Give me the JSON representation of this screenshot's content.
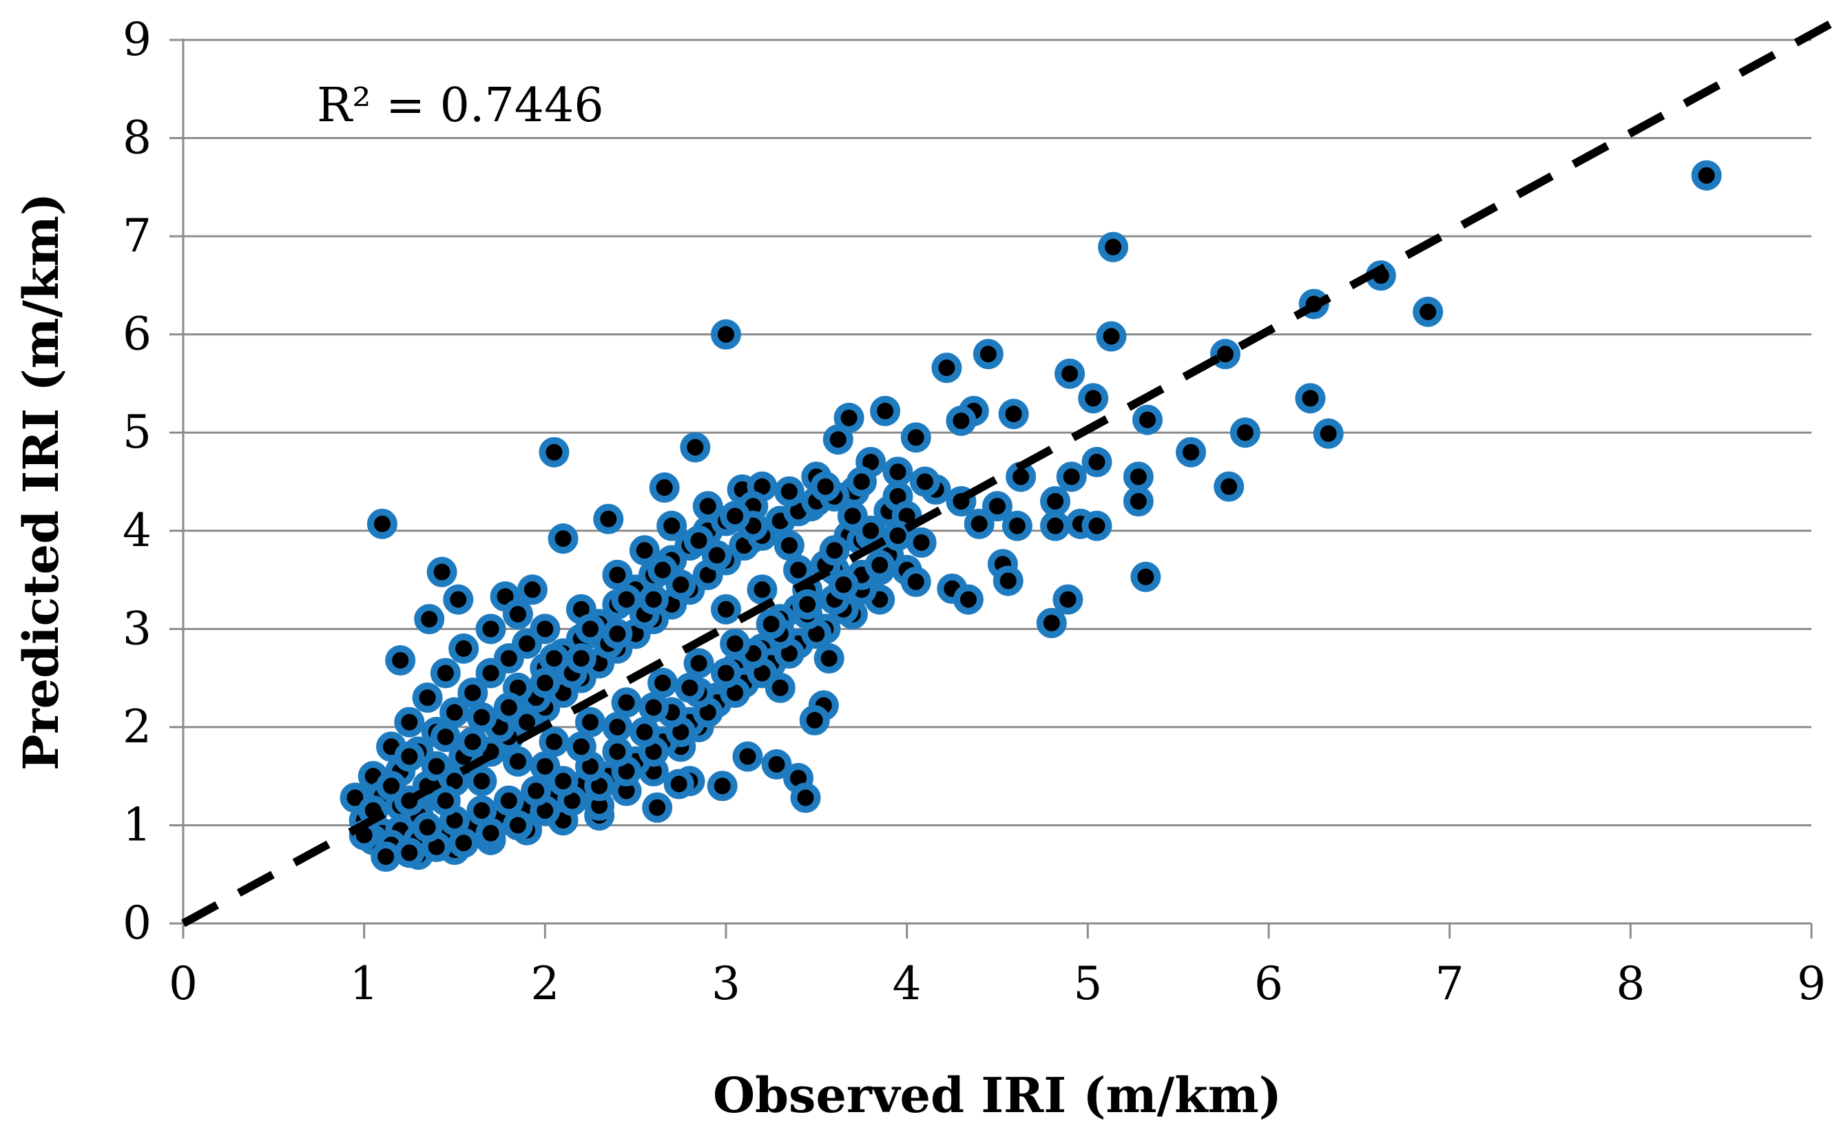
{
  "chart_data": {
    "type": "scatter",
    "title": "",
    "xlabel": "Observed IRI (m/km)",
    "ylabel": "Predicted IRI (m/km)",
    "xlim": [
      0,
      9
    ],
    "ylim": [
      0,
      9
    ],
    "x_ticks": [
      "0",
      "1",
      "2",
      "3",
      "4",
      "5",
      "6",
      "7",
      "8",
      "9"
    ],
    "y_ticks": [
      "0",
      "1",
      "2",
      "3",
      "4",
      "5",
      "6",
      "7",
      "8",
      "9"
    ],
    "grid": "horizontal",
    "legend": "none",
    "annotation": "R² = 0.7446",
    "reference_line": {
      "style": "dashed",
      "color": "#000000",
      "from": [
        0,
        0
      ],
      "to": [
        9,
        9
      ]
    },
    "marker": {
      "fill": "#000000",
      "edge": "#1F7BC0"
    },
    "series": [
      {
        "points": [
          [
            8.42,
            7.62
          ],
          [
            5.14,
            6.89
          ],
          [
            6.62,
            6.6
          ],
          [
            6.25,
            6.31
          ],
          [
            6.88,
            6.23
          ],
          [
            3.0,
            6.0
          ],
          [
            5.13,
            5.98
          ],
          [
            4.45,
            5.8
          ],
          [
            5.76,
            5.8
          ],
          [
            4.22,
            5.66
          ],
          [
            4.9,
            5.6
          ],
          [
            6.23,
            5.35
          ],
          [
            5.03,
            5.35
          ],
          [
            4.37,
            5.22
          ],
          [
            4.59,
            5.19
          ],
          [
            3.88,
            5.22
          ],
          [
            3.68,
            5.15
          ],
          [
            5.33,
            5.13
          ],
          [
            4.3,
            5.12
          ],
          [
            4.05,
            4.95
          ],
          [
            5.87,
            5.0
          ],
          [
            6.33,
            4.99
          ],
          [
            3.62,
            4.93
          ],
          [
            2.83,
            4.85
          ],
          [
            2.05,
            4.8
          ],
          [
            5.57,
            4.8
          ],
          [
            5.05,
            4.7
          ],
          [
            4.63,
            4.55
          ],
          [
            4.91,
            4.55
          ],
          [
            5.28,
            4.55
          ],
          [
            4.16,
            4.42
          ],
          [
            5.78,
            4.45
          ],
          [
            2.66,
            4.44
          ],
          [
            3.09,
            4.42
          ],
          [
            3.71,
            4.4
          ],
          [
            4.82,
            4.3
          ],
          [
            5.28,
            4.3
          ],
          [
            4.3,
            4.3
          ],
          [
            4.5,
            4.25
          ],
          [
            3.47,
            4.25
          ],
          [
            1.1,
            4.07
          ],
          [
            4.4,
            4.07
          ],
          [
            4.96,
            4.07
          ],
          [
            4.61,
            4.05
          ],
          [
            2.35,
            4.12
          ],
          [
            5.05,
            4.05
          ],
          [
            4.82,
            4.05
          ],
          [
            2.1,
            3.92
          ],
          [
            3.14,
            3.92
          ],
          [
            3.68,
            3.95
          ],
          [
            4.08,
            3.88
          ],
          [
            1.43,
            3.58
          ],
          [
            4.53,
            3.66
          ],
          [
            4.56,
            3.49
          ],
          [
            5.32,
            3.53
          ],
          [
            4.25,
            3.41
          ],
          [
            4.34,
            3.3
          ],
          [
            4.89,
            3.3
          ],
          [
            4.8,
            3.06
          ],
          [
            3.4,
            3.2
          ],
          [
            1.93,
            3.4
          ],
          [
            1.78,
            3.33
          ],
          [
            1.52,
            3.3
          ],
          [
            1.36,
            3.1
          ],
          [
            1.2,
            2.68
          ],
          [
            3.57,
            2.7
          ],
          [
            3.54,
            2.22
          ],
          [
            3.49,
            2.07
          ],
          [
            3.3,
            2.4
          ],
          [
            2.8,
            1.45
          ],
          [
            2.98,
            1.4
          ],
          [
            3.12,
            1.7
          ],
          [
            3.28,
            1.62
          ],
          [
            3.4,
            1.48
          ],
          [
            3.44,
            1.28
          ],
          [
            2.74,
            1.42
          ],
          [
            2.62,
            1.18
          ],
          [
            2.3,
            1.1
          ],
          [
            1.1,
            0.92
          ],
          [
            1.18,
            0.78
          ],
          [
            1.05,
            0.85
          ],
          [
            1.0,
            1.05
          ],
          [
            0.95,
            1.28
          ],
          [
            1.05,
            1.5
          ],
          [
            1.15,
            1.8
          ],
          [
            1.25,
            2.05
          ],
          [
            1.35,
            2.3
          ],
          [
            1.45,
            2.55
          ],
          [
            1.55,
            2.8
          ],
          [
            1.7,
            3.0
          ],
          [
            1.85,
            3.15
          ],
          [
            2.0,
            3.0
          ],
          [
            2.2,
            3.2
          ],
          [
            2.4,
            3.55
          ],
          [
            2.55,
            3.8
          ],
          [
            2.7,
            4.05
          ],
          [
            2.9,
            4.25
          ],
          [
            3.2,
            4.45
          ],
          [
            3.5,
            4.55
          ],
          [
            3.8,
            4.7
          ],
          [
            3.95,
            4.6
          ],
          [
            4.1,
            4.5
          ],
          [
            3.9,
            4.2
          ],
          [
            3.75,
            3.9
          ],
          [
            3.6,
            3.6
          ],
          [
            3.45,
            3.4
          ],
          [
            3.3,
            3.1
          ],
          [
            3.2,
            2.8
          ],
          [
            3.05,
            2.6
          ],
          [
            2.95,
            2.3
          ],
          [
            2.85,
            2.0
          ],
          [
            2.75,
            1.8
          ],
          [
            2.6,
            1.55
          ],
          [
            2.45,
            1.35
          ],
          [
            2.3,
            1.2
          ],
          [
            2.1,
            1.05
          ],
          [
            1.9,
            0.95
          ],
          [
            1.7,
            0.85
          ],
          [
            1.5,
            0.75
          ],
          [
            1.3,
            0.7
          ],
          [
            1.2,
            0.95
          ],
          [
            1.3,
            1.1
          ],
          [
            1.4,
            1.3
          ],
          [
            1.5,
            1.45
          ],
          [
            1.6,
            1.6
          ],
          [
            1.7,
            1.75
          ],
          [
            1.8,
            1.9
          ],
          [
            1.9,
            2.05
          ],
          [
            2.0,
            2.2
          ],
          [
            2.1,
            2.35
          ],
          [
            2.2,
            2.5
          ],
          [
            2.3,
            2.65
          ],
          [
            2.4,
            2.8
          ],
          [
            2.5,
            2.95
          ],
          [
            2.6,
            3.1
          ],
          [
            2.7,
            3.25
          ],
          [
            2.8,
            3.4
          ],
          [
            2.9,
            3.55
          ],
          [
            3.0,
            3.7
          ],
          [
            3.1,
            3.85
          ],
          [
            3.2,
            3.95
          ],
          [
            3.3,
            4.1
          ],
          [
            3.4,
            4.2
          ],
          [
            3.5,
            4.3
          ],
          [
            3.6,
            4.35
          ],
          [
            3.7,
            4.15
          ],
          [
            3.8,
            3.95
          ],
          [
            3.9,
            3.75
          ],
          [
            4.0,
            3.6
          ],
          [
            4.05,
            3.48
          ],
          [
            3.85,
            3.3
          ],
          [
            3.7,
            3.15
          ],
          [
            3.55,
            3.0
          ],
          [
            3.4,
            2.85
          ],
          [
            3.25,
            2.65
          ],
          [
            3.1,
            2.45
          ],
          [
            2.95,
            2.25
          ],
          [
            2.8,
            2.05
          ],
          [
            2.65,
            1.85
          ],
          [
            2.5,
            1.65
          ],
          [
            2.35,
            1.5
          ],
          [
            2.2,
            1.4
          ],
          [
            2.05,
            1.3
          ],
          [
            1.9,
            1.2
          ],
          [
            1.75,
            1.1
          ],
          [
            1.6,
            1.0
          ],
          [
            1.45,
            0.9
          ],
          [
            1.3,
            0.85
          ],
          [
            1.15,
            0.8
          ],
          [
            1.0,
            0.9
          ],
          [
            1.1,
            1.3
          ],
          [
            1.2,
            1.55
          ],
          [
            1.3,
            1.75
          ],
          [
            1.4,
            1.95
          ],
          [
            1.5,
            2.15
          ],
          [
            1.6,
            2.35
          ],
          [
            1.7,
            2.55
          ],
          [
            1.8,
            2.7
          ],
          [
            1.9,
            2.85
          ],
          [
            2.0,
            2.6
          ],
          [
            2.1,
            2.75
          ],
          [
            2.2,
            2.9
          ],
          [
            2.3,
            3.05
          ],
          [
            2.4,
            3.25
          ],
          [
            2.5,
            3.4
          ],
          [
            2.6,
            3.55
          ],
          [
            2.7,
            3.7
          ],
          [
            2.8,
            3.85
          ],
          [
            2.9,
            4.0
          ],
          [
            3.0,
            4.1
          ],
          [
            3.15,
            4.25
          ],
          [
            3.35,
            4.4
          ],
          [
            3.55,
            4.45
          ],
          [
            3.75,
            4.5
          ],
          [
            3.95,
            4.35
          ],
          [
            4.0,
            4.15
          ],
          [
            3.95,
            3.95
          ],
          [
            3.85,
            3.6
          ],
          [
            3.75,
            3.4
          ],
          [
            3.65,
            3.2
          ],
          [
            3.5,
            2.95
          ],
          [
            3.35,
            2.75
          ],
          [
            3.2,
            2.55
          ],
          [
            3.05,
            2.35
          ],
          [
            2.9,
            2.15
          ],
          [
            2.75,
            1.95
          ],
          [
            2.6,
            1.75
          ],
          [
            2.45,
            1.55
          ],
          [
            2.3,
            1.4
          ],
          [
            2.15,
            1.25
          ],
          [
            2.0,
            1.15
          ],
          [
            1.85,
            1.0
          ],
          [
            1.7,
            0.92
          ],
          [
            1.55,
            0.82
          ],
          [
            1.4,
            0.78
          ],
          [
            1.25,
            0.72
          ],
          [
            1.12,
            0.68
          ],
          [
            1.35,
            1.4
          ],
          [
            1.55,
            1.7
          ],
          [
            1.75,
            2.0
          ],
          [
            1.95,
            2.3
          ],
          [
            2.15,
            2.55
          ],
          [
            2.35,
            2.85
          ],
          [
            2.55,
            3.15
          ],
          [
            2.75,
            3.45
          ],
          [
            2.95,
            3.75
          ],
          [
            3.15,
            4.05
          ],
          [
            3.35,
            3.85
          ],
          [
            3.55,
            3.65
          ],
          [
            3.75,
            3.55
          ],
          [
            3.6,
            3.3
          ],
          [
            3.45,
            3.15
          ],
          [
            3.3,
            2.95
          ],
          [
            3.15,
            2.75
          ],
          [
            3.0,
            2.55
          ],
          [
            2.85,
            2.35
          ],
          [
            2.7,
            2.15
          ],
          [
            2.55,
            1.95
          ],
          [
            2.4,
            1.75
          ],
          [
            2.25,
            1.6
          ],
          [
            2.1,
            1.45
          ],
          [
            1.95,
            1.35
          ],
          [
            1.8,
            1.25
          ],
          [
            1.65,
            1.15
          ],
          [
            1.5,
            1.05
          ],
          [
            1.35,
            0.98
          ],
          [
            1.2,
            1.2
          ],
          [
            1.45,
            1.25
          ],
          [
            1.65,
            1.45
          ],
          [
            1.85,
            1.65
          ],
          [
            2.05,
            1.85
          ],
          [
            2.25,
            2.05
          ],
          [
            2.45,
            2.25
          ],
          [
            2.65,
            2.45
          ],
          [
            2.85,
            2.65
          ],
          [
            3.05,
            2.85
          ],
          [
            3.25,
            3.05
          ],
          [
            3.45,
            3.25
          ],
          [
            3.65,
            3.45
          ],
          [
            3.85,
            3.65
          ],
          [
            2.0,
            1.6
          ],
          [
            2.2,
            1.8
          ],
          [
            2.4,
            2.0
          ],
          [
            2.6,
            2.2
          ],
          [
            2.8,
            2.4
          ],
          [
            3.0,
            3.2
          ],
          [
            3.2,
            3.4
          ],
          [
            3.4,
            3.6
          ],
          [
            3.6,
            3.8
          ],
          [
            3.8,
            4.0
          ],
          [
            1.25,
            1.7
          ],
          [
            1.45,
            1.9
          ],
          [
            1.65,
            2.1
          ],
          [
            1.85,
            2.4
          ],
          [
            2.05,
            2.7
          ],
          [
            2.25,
            3.0
          ],
          [
            2.45,
            3.3
          ],
          [
            2.65,
            3.6
          ],
          [
            2.85,
            3.9
          ],
          [
            3.05,
            4.15
          ],
          [
            1.05,
            1.15
          ],
          [
            1.15,
            1.4
          ],
          [
            1.25,
            1.25
          ],
          [
            1.4,
            1.6
          ],
          [
            1.6,
            1.85
          ],
          [
            1.8,
            2.2
          ],
          [
            2.0,
            2.45
          ],
          [
            2.2,
            2.7
          ],
          [
            2.4,
            2.95
          ],
          [
            2.6,
            3.3
          ]
        ]
      }
    ]
  }
}
